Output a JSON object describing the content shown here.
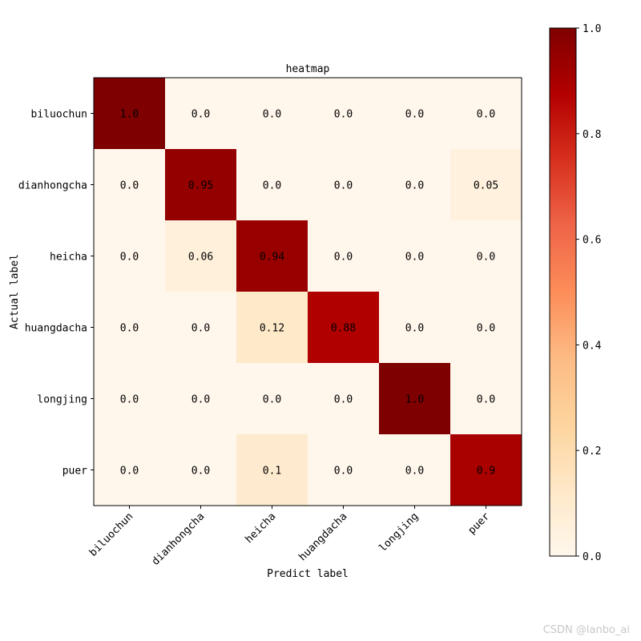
{
  "chart_data": {
    "type": "heatmap",
    "title": "heatmap",
    "xlabel": "Predict label",
    "ylabel": "Actual label",
    "x_categories": [
      "biluochun",
      "dianhongcha",
      "heicha",
      "huangdacha",
      "longjing",
      "puer"
    ],
    "y_categories": [
      "biluochun",
      "dianhongcha",
      "heicha",
      "huangdacha",
      "longjing",
      "puer"
    ],
    "values": [
      [
        1.0,
        0.0,
        0.0,
        0.0,
        0.0,
        0.0
      ],
      [
        0.0,
        0.95,
        0.0,
        0.0,
        0.0,
        0.05
      ],
      [
        0.0,
        0.06,
        0.94,
        0.0,
        0.0,
        0.0
      ],
      [
        0.0,
        0.0,
        0.12,
        0.88,
        0.0,
        0.0
      ],
      [
        0.0,
        0.0,
        0.0,
        0.0,
        1.0,
        0.0
      ],
      [
        0.0,
        0.0,
        0.1,
        0.0,
        0.0,
        0.9
      ]
    ],
    "cell_labels": [
      [
        "1.0",
        "0.0",
        "0.0",
        "0.0",
        "0.0",
        "0.0"
      ],
      [
        "0.0",
        "0.95",
        "0.0",
        "0.0",
        "0.0",
        "0.05"
      ],
      [
        "0.0",
        "0.06",
        "0.94",
        "0.0",
        "0.0",
        "0.0"
      ],
      [
        "0.0",
        "0.0",
        "0.12",
        "0.88",
        "0.0",
        "0.0"
      ],
      [
        "0.0",
        "0.0",
        "0.0",
        "0.0",
        "1.0",
        "0.0"
      ],
      [
        "0.0",
        "0.0",
        "0.1",
        "0.0",
        "0.0",
        "0.9"
      ]
    ],
    "colormap": "OrRd",
    "colorbar": {
      "range": [
        0.0,
        1.0
      ],
      "ticks": [
        "0.0",
        "0.2",
        "0.4",
        "0.6",
        "0.8",
        "1.0"
      ],
      "placement": "right"
    },
    "x_tick_rotation": "45 degrees",
    "grid": false
  },
  "watermark": "CSDN @lanbo_ai"
}
